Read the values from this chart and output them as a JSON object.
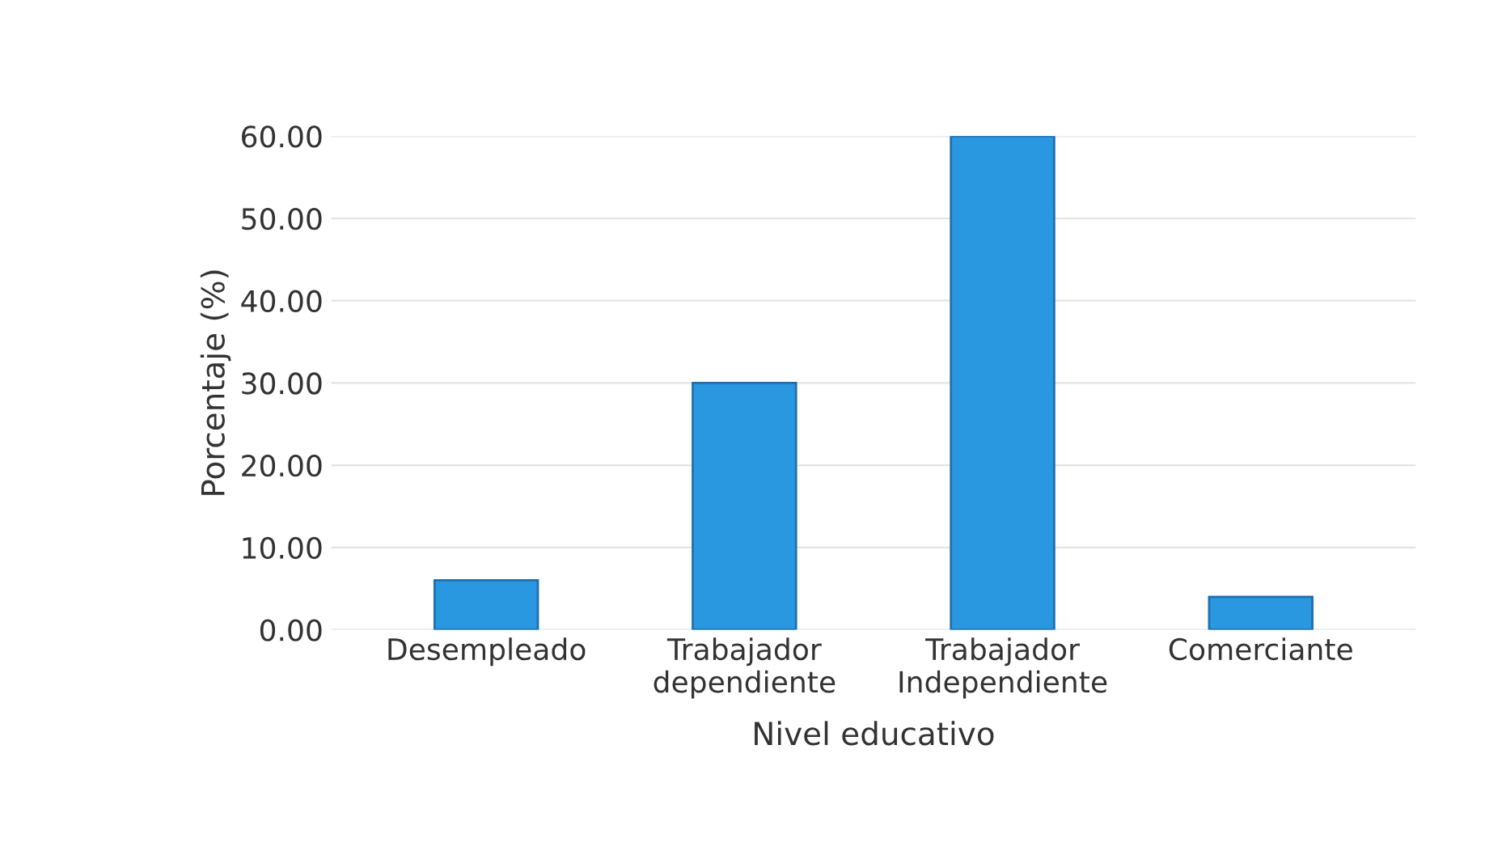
{
  "chart_data": {
    "type": "bar",
    "categories": [
      "Desempleado",
      "Trabajador\ndependiente",
      "Trabajador\nIndependiente",
      "Comerciante"
    ],
    "values": [
      6,
      30,
      60,
      4
    ],
    "color": "#2a98e0",
    "xlabel": "Nivel educativo",
    "ylabel": "Porcentaje (%)",
    "ylim": [
      0,
      60
    ],
    "yticks": [
      {
        "value": 0,
        "label": "0.00"
      },
      {
        "value": 10,
        "label": "10.00"
      },
      {
        "value": 20,
        "label": "20.00"
      },
      {
        "value": 30,
        "label": "30.00"
      },
      {
        "value": 40,
        "label": "40.00"
      },
      {
        "value": 50,
        "label": "50.00"
      },
      {
        "value": 60,
        "label": "60.00"
      }
    ],
    "grid": "y"
  }
}
